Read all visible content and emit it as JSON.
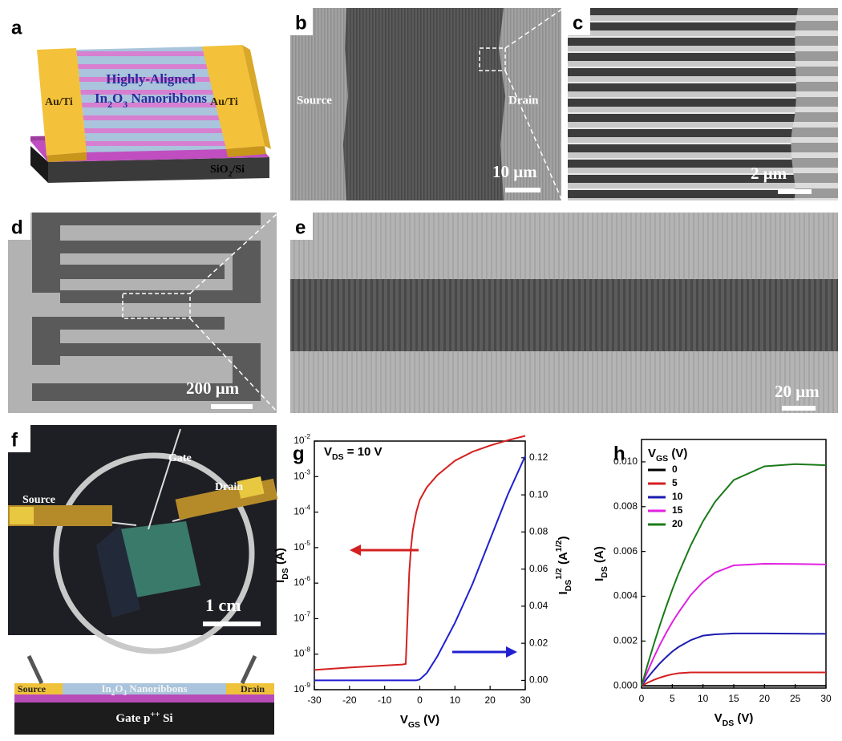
{
  "panel_a": {
    "label": "a",
    "left_contact": "Au/Ti",
    "right_contact": "Au/Ti",
    "channel_line1": "Highly-Aligned",
    "channel_line2": [
      [
        "In",
        ""
      ],
      [
        "2",
        "sub"
      ],
      [
        "O",
        ""
      ],
      [
        "3",
        "sub"
      ],
      [
        " Nanoribbons",
        ""
      ]
    ],
    "substrate": [
      [
        "SiO",
        ""
      ],
      [
        "2",
        "sub"
      ],
      [
        "/Si",
        ""
      ]
    ]
  },
  "panel_b": {
    "label": "b",
    "source": "Source",
    "drain": "Drain",
    "scale": "10 μm"
  },
  "panel_c": {
    "label": "c",
    "scale": "2 μm"
  },
  "panel_d": {
    "label": "d",
    "scale": "200 μm"
  },
  "panel_e": {
    "label": "e",
    "scale": "20 μm"
  },
  "panel_f": {
    "label": "f",
    "gate": "Gate",
    "source": "Source",
    "drain": "Drain",
    "scale": "1 cm",
    "schematic": {
      "source": "Source",
      "channel": [
        [
          "In",
          ""
        ],
        [
          "2",
          "sub"
        ],
        [
          "O",
          ""
        ],
        [
          "3",
          "sub"
        ],
        [
          " Nanoribbons",
          ""
        ]
      ],
      "drain": "Drain",
      "gate": [
        [
          "Gate p",
          ""
        ],
        [
          "++",
          "sup"
        ],
        [
          " Si",
          ""
        ]
      ]
    }
  },
  "chart_data": [
    {
      "type": "line",
      "panel": "g",
      "log_y": true,
      "annotation": [
        [
          "V",
          ""
        ],
        [
          "DS",
          "sub"
        ],
        [
          " = 10 V",
          ""
        ]
      ],
      "xlabel": [
        [
          "V",
          ""
        ],
        [
          "GS",
          "sub"
        ],
        [
          " (V)",
          ""
        ]
      ],
      "ylabel": [
        [
          "I",
          ""
        ],
        [
          "DS",
          "sub"
        ],
        [
          " (A)",
          ""
        ]
      ],
      "y2label": [
        [
          "I",
          ""
        ],
        [
          "DS",
          "sub"
        ],
        [
          "1/2",
          "sup"
        ],
        [
          " (A",
          ""
        ],
        [
          "1/2",
          "sup"
        ],
        [
          ")",
          ""
        ]
      ],
      "x": [
        -30,
        -25,
        -20,
        -15,
        -10,
        -5,
        -4,
        -3.5,
        -3,
        -2.5,
        -2,
        -1,
        0,
        2,
        5,
        10,
        15,
        20,
        25,
        30
      ],
      "series": [
        {
          "name": "IDS",
          "color": "#d42020",
          "values": [
            3.6e-09,
            3.9e-09,
            4.2e-09,
            4.5e-09,
            4.8e-09,
            5.1e-09,
            5.3e-09,
            1e-07,
            2e-06,
            1e-05,
            3e-05,
            0.0001,
            0.00022,
            0.0005,
            0.0011,
            0.0028,
            0.005,
            0.0075,
            0.0105,
            0.014
          ]
        },
        {
          "name": "IDS1/2",
          "color": "#2020d0",
          "axis": "y2",
          "values": [
            0,
            0,
            0,
            0,
            0,
            0,
            0,
            0,
            0,
            0,
            0,
            0,
            0.0005,
            0.004,
            0.013,
            0.031,
            0.052,
            0.076,
            0.1,
            0.121
          ]
        }
      ],
      "xlim": [
        -30,
        30
      ],
      "xticks": [
        -30,
        -20,
        -10,
        0,
        10,
        20,
        30
      ],
      "ylim": [
        1e-09,
        0.01
      ],
      "yticks": [
        {
          "value": 1e-09,
          "label": [
            [
              "10",
              ""
            ],
            [
              "-9",
              "sup"
            ]
          ]
        },
        {
          "value": 1e-08,
          "label": [
            [
              "10",
              ""
            ],
            [
              "-8",
              "sup"
            ]
          ]
        },
        {
          "value": 1e-07,
          "label": [
            [
              "10",
              ""
            ],
            [
              "-7",
              "sup"
            ]
          ]
        },
        {
          "value": 1e-06,
          "label": [
            [
              "10",
              ""
            ],
            [
              "-6",
              "sup"
            ]
          ]
        },
        {
          "value": 1e-05,
          "label": [
            [
              "10",
              ""
            ],
            [
              "-5",
              "sup"
            ]
          ]
        },
        {
          "value": 0.0001,
          "label": [
            [
              "10",
              ""
            ],
            [
              "-4",
              "sup"
            ]
          ]
        },
        {
          "value": 0.001,
          "label": [
            [
              "10",
              ""
            ],
            [
              "-3",
              "sup"
            ]
          ]
        },
        {
          "value": 0.01,
          "label": [
            [
              "10",
              ""
            ],
            [
              "-2",
              "sup"
            ]
          ]
        }
      ],
      "y2lim": [
        -0.005,
        0.129
      ],
      "y2ticks": [
        {
          "value": 0,
          "label": "0.00"
        },
        {
          "value": 0.02,
          "label": "0.02"
        },
        {
          "value": 0.04,
          "label": "0.04"
        },
        {
          "value": 0.06,
          "label": "0.06"
        },
        {
          "value": 0.08,
          "label": "0.08"
        },
        {
          "value": 0.1,
          "label": "0.10"
        },
        {
          "value": 0.12,
          "label": "0.12"
        }
      ]
    },
    {
      "type": "line",
      "panel": "h",
      "legend": "upper left",
      "legend_title": [
        [
          "V",
          ""
        ],
        [
          "GS",
          "sub"
        ],
        [
          " (V)",
          ""
        ]
      ],
      "xlabel": [
        [
          "V",
          ""
        ],
        [
          "DS",
          "sub"
        ],
        [
          " (V)",
          ""
        ]
      ],
      "ylabel": [
        [
          "I",
          ""
        ],
        [
          "DS",
          "sub"
        ],
        [
          " (A)",
          ""
        ]
      ],
      "x": [
        0,
        1,
        2,
        3,
        4,
        5,
        6,
        8,
        10,
        12,
        15,
        20,
        25,
        30
      ],
      "series": [
        {
          "name": "0",
          "color": "#000000",
          "values": [
            0,
            0,
            0,
            0,
            0,
            0,
            0,
            0,
            0,
            0,
            0,
            0,
            0,
            0
          ]
        },
        {
          "name": "5",
          "color": "#d42020",
          "values": [
            0,
            0.000141,
            0.000263,
            0.000366,
            0.00045,
            0.000516,
            0.000563,
            0.0006,
            0.0006,
            0.0006,
            0.0006,
            0.0006,
            0.0006,
            0.0006
          ]
        },
        {
          "name": "10",
          "color": "#1c1cb0",
          "values": [
            0,
            0.000367,
            0.0007,
            0.00101,
            0.00128,
            0.00153,
            0.00173,
            0.00204,
            0.00224,
            0.0023,
            0.00234,
            0.00234,
            0.00233,
            0.00232
          ]
        },
        {
          "name": "15",
          "color": "#e020e0",
          "values": [
            0,
            0.000654,
            0.00127,
            0.00184,
            0.00236,
            0.00284,
            0.00327,
            0.00405,
            0.00464,
            0.00506,
            0.00538,
            0.00545,
            0.00544,
            0.00542
          ]
        },
        {
          "name": "20",
          "color": "#1a7a1a",
          "values": [
            0,
            0.000955,
            0.00186,
            0.00272,
            0.00353,
            0.00429,
            0.005,
            0.00627,
            0.00735,
            0.00823,
            0.00919,
            0.0098,
            0.0099,
            0.00985
          ]
        }
      ],
      "xlim": [
        0,
        30
      ],
      "xticks": [
        0,
        5,
        10,
        15,
        20,
        25,
        30
      ],
      "ylim": [
        -0.0001,
        0.011
      ],
      "yticks": [
        {
          "value": 0,
          "label": "0.000"
        },
        {
          "value": 0.002,
          "label": "0.002"
        },
        {
          "value": 0.004,
          "label": "0.004"
        },
        {
          "value": 0.006,
          "label": "0.006"
        },
        {
          "value": 0.008,
          "label": "0.008"
        },
        {
          "value": 0.01,
          "label": "0.010"
        }
      ]
    }
  ]
}
